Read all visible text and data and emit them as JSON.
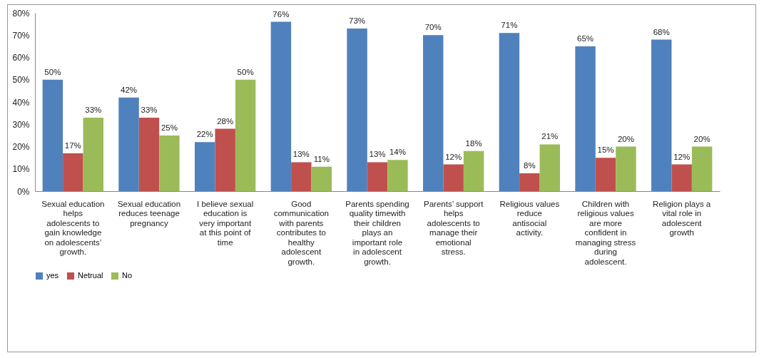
{
  "chart_data": {
    "type": "bar",
    "categories": [
      "Sexual education helps adolescents to gain knowledge on adolescents’ growth.",
      "Sexual education reduces teenage pregnancy",
      "I believe sexual education is very important at this point of time",
      "Good communication with parents contributes to healthy adolescent growth.",
      "Parents spending quality timewith their children plays an important role in adolescent growth.",
      "Parents’ support helps adolescents to manage their emotional stress.",
      "Religious values reduce antisocial activity.",
      "Children with religious values are more confident in managing stress during adolescent.",
      "Religion plays a vital role in adolescent growth"
    ],
    "series": [
      {
        "name": "yes",
        "color": "#4f81bd",
        "values": [
          50,
          42,
          22,
          76,
          73,
          70,
          71,
          65,
          68
        ],
        "value_labels": [
          "50%",
          "42%",
          "22%",
          "76%",
          "73%",
          "70%",
          "71%",
          "65%",
          "68%"
        ]
      },
      {
        "name": "Netrual",
        "color": "#c0504d",
        "values": [
          17,
          33,
          28,
          13,
          13,
          12,
          8,
          15,
          12
        ],
        "value_labels": [
          "17%",
          "33%",
          "28%",
          "13%",
          "13%",
          "12%",
          "8%",
          "15%",
          "12%"
        ]
      },
      {
        "name": "No",
        "color": "#9bbb59",
        "values": [
          33,
          25,
          50,
          11,
          14,
          18,
          21,
          20,
          20
        ],
        "value_labels": [
          "33%",
          "25%",
          "50%",
          "11%",
          "14%",
          "18%",
          "21%",
          "20%",
          "20%"
        ]
      }
    ],
    "ylim": [
      0,
      80
    ],
    "yticks": [
      {
        "value": 0,
        "label": "0%"
      },
      {
        "value": 10,
        "label": "10%"
      },
      {
        "value": 20,
        "label": "20%"
      },
      {
        "value": 30,
        "label": "30%"
      },
      {
        "value": 40,
        "label": "40%"
      },
      {
        "value": 50,
        "label": "50%"
      },
      {
        "value": 60,
        "label": "60%"
      },
      {
        "value": 70,
        "label": "70%"
      },
      {
        "value": 80,
        "label": "80%"
      }
    ],
    "grid": false,
    "legend": "bottom"
  }
}
